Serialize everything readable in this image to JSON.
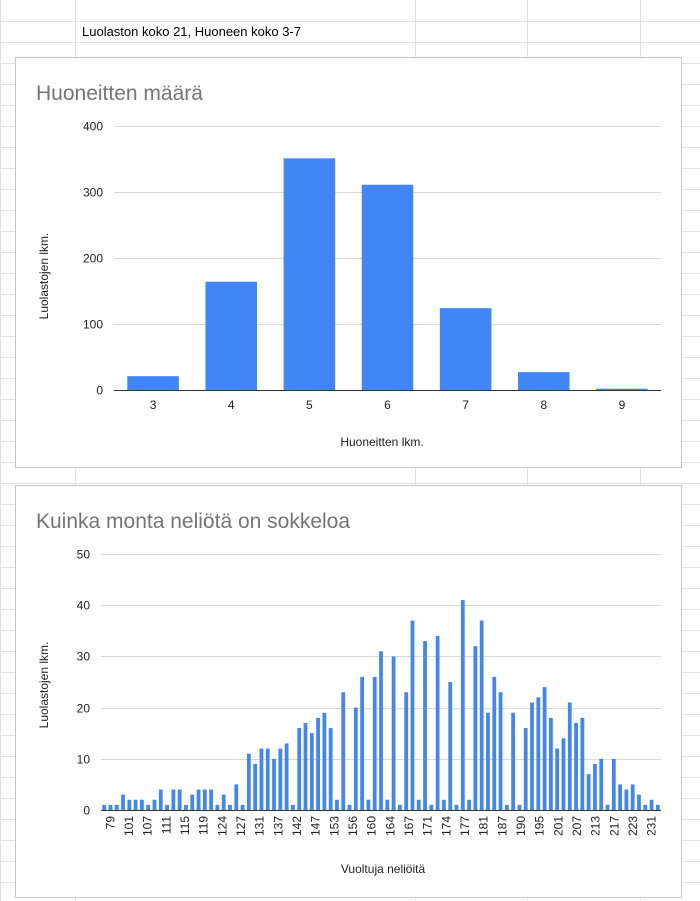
{
  "sheet": {
    "cell_text": "Luolaston koko 21, Huoneen koko 3-7",
    "grid_color": "#e2e2e2"
  },
  "bar_color": "#4285f4",
  "chart_data": [
    {
      "type": "bar",
      "title": "Huoneitten määrä",
      "xlabel": "Huoneitten lkm.",
      "ylabel": "Luolastojen lkm.",
      "ylim": [
        0,
        400
      ],
      "yticks": [
        0,
        100,
        200,
        300,
        400
      ],
      "grid": true,
      "categories": [
        "3",
        "4",
        "5",
        "6",
        "7",
        "8",
        "9"
      ],
      "values": [
        21,
        164,
        351,
        311,
        124,
        27,
        2
      ]
    },
    {
      "type": "bar",
      "title": "Kuinka monta neliötä on sokkeloa",
      "xlabel": "Vuoltuja neliöitä",
      "ylabel": "Luolastojen lkm.",
      "ylim": [
        0,
        50
      ],
      "yticks": [
        0,
        10,
        20,
        30,
        40,
        50
      ],
      "grid": true,
      "x_range": [
        79,
        232
      ],
      "x_labels": [
        "79",
        "101",
        "107",
        "111",
        "115",
        "119",
        "124",
        "127",
        "131",
        "137",
        "142",
        "147",
        "153",
        "156",
        "160",
        "164",
        "167",
        "171",
        "174",
        "177",
        "181",
        "187",
        "190",
        "195",
        "201",
        "207",
        "213",
        "217",
        "223",
        "231"
      ],
      "values": [
        1,
        1,
        1,
        3,
        2,
        2,
        2,
        1,
        2,
        4,
        1,
        4,
        4,
        1,
        3,
        4,
        4,
        4,
        1,
        3,
        1,
        5,
        1,
        11,
        9,
        12,
        12,
        10,
        12,
        13,
        1,
        16,
        17,
        15,
        18,
        19,
        16,
        2,
        23,
        1,
        20,
        26,
        2,
        26,
        31,
        2,
        30,
        1,
        23,
        37,
        2,
        33,
        1,
        34,
        2,
        25,
        1,
        41,
        2,
        32,
        37,
        19,
        26,
        23,
        1,
        19,
        1,
        16,
        21,
        22,
        24,
        18,
        12,
        14,
        21,
        17,
        18,
        7,
        9,
        10,
        1,
        10,
        5,
        4,
        5,
        3,
        1,
        2,
        1
      ]
    }
  ]
}
